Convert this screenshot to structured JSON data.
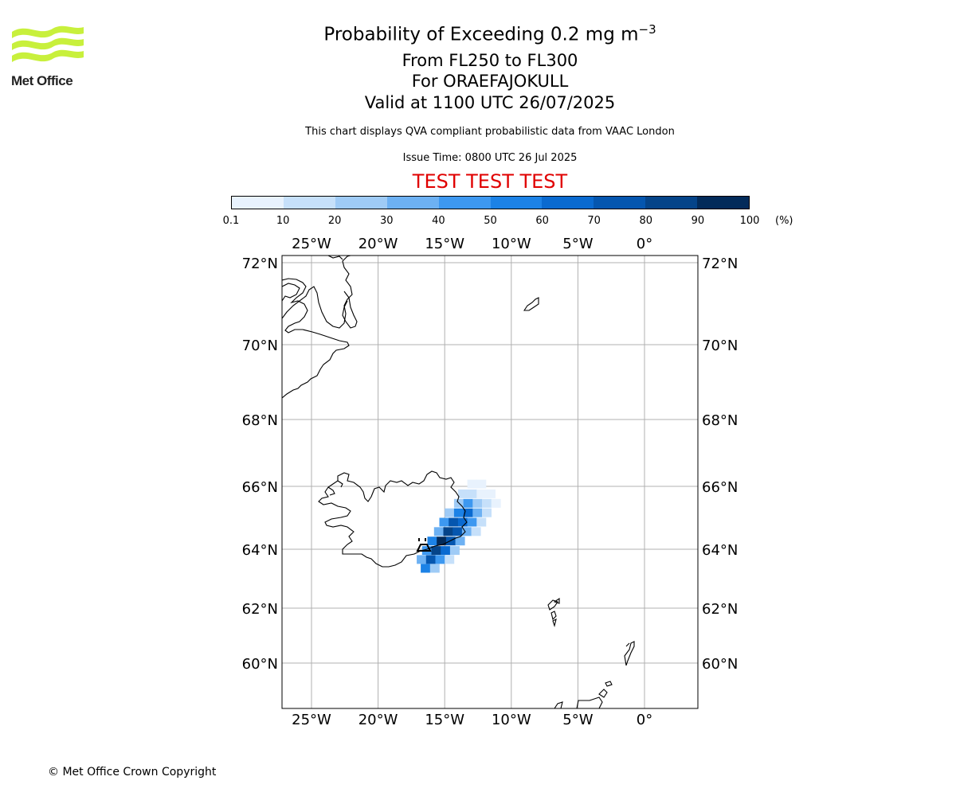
{
  "header": {
    "logo_text": "Met Office",
    "title_main": "Probability of Exceeding 0.2 mg m",
    "title_sup": "−3",
    "level_range": "From FL250 to FL300",
    "volcano": "For ORAEFAJOKULL",
    "valid_time": "Valid at 1100 UTC 26/07/2025",
    "note": "This chart displays QVA compliant probabilistic data from VAAC London",
    "issue_time": "Issue Time: 0800 UTC 26 Jul 2025",
    "test_banner": "TEST TEST TEST"
  },
  "colorbar": {
    "ticks": [
      "0.1",
      "10",
      "20",
      "30",
      "40",
      "50",
      "60",
      "70",
      "80",
      "90",
      "100"
    ],
    "unit": "(%)",
    "colors": [
      "#e8f2fd",
      "#c6e0fa",
      "#9fcbf6",
      "#6db1f3",
      "#3d98f0",
      "#1c82e6",
      "#0a6ad0",
      "#0556af",
      "#054489",
      "#032b5a"
    ]
  },
  "map": {
    "lon_labels": [
      "25°W",
      "20°W",
      "15°W",
      "10°W",
      "5°W",
      "0°"
    ],
    "lat_labels": [
      "72°N",
      "70°N",
      "68°N",
      "66°N",
      "64°N",
      "62°N",
      "60°N"
    ],
    "plume": {
      "value_scale": "percent",
      "cells": [
        [
          -13.3,
          66.2,
          5
        ],
        [
          -12.6,
          66.2,
          5
        ],
        [
          -14.0,
          65.9,
          15
        ],
        [
          -13.3,
          65.9,
          15
        ],
        [
          -12.6,
          65.9,
          8
        ],
        [
          -11.9,
          65.9,
          8
        ],
        [
          -14.3,
          65.6,
          25
        ],
        [
          -13.6,
          65.6,
          45
        ],
        [
          -12.9,
          65.6,
          20
        ],
        [
          -12.2,
          65.6,
          10
        ],
        [
          -11.5,
          65.6,
          5
        ],
        [
          -15.0,
          65.3,
          25
        ],
        [
          -14.3,
          65.3,
          55
        ],
        [
          -13.6,
          65.3,
          65
        ],
        [
          -12.9,
          65.3,
          35
        ],
        [
          -12.2,
          65.3,
          12
        ],
        [
          -15.4,
          65.0,
          45
        ],
        [
          -14.7,
          65.0,
          75
        ],
        [
          -14.0,
          65.0,
          65
        ],
        [
          -13.3,
          65.0,
          40
        ],
        [
          -12.6,
          65.0,
          15
        ],
        [
          -15.8,
          64.7,
          35
        ],
        [
          -15.1,
          64.7,
          85
        ],
        [
          -14.4,
          64.7,
          70
        ],
        [
          -13.7,
          64.7,
          35
        ],
        [
          -13.0,
          64.7,
          10
        ],
        [
          -16.3,
          64.4,
          55
        ],
        [
          -15.6,
          64.4,
          95
        ],
        [
          -14.9,
          64.4,
          75
        ],
        [
          -14.2,
          64.4,
          30
        ],
        [
          -16.7,
          64.1,
          45
        ],
        [
          -16.0,
          64.1,
          85
        ],
        [
          -15.3,
          64.1,
          60
        ],
        [
          -14.6,
          64.1,
          20
        ],
        [
          -17.1,
          63.8,
          35
        ],
        [
          -16.4,
          63.8,
          70
        ],
        [
          -15.7,
          63.8,
          40
        ],
        [
          -15.0,
          63.8,
          15
        ],
        [
          -16.8,
          63.5,
          50
        ],
        [
          -16.1,
          63.5,
          25
        ]
      ]
    }
  },
  "footer": {
    "copyright": "© Met Office Crown Copyright"
  }
}
